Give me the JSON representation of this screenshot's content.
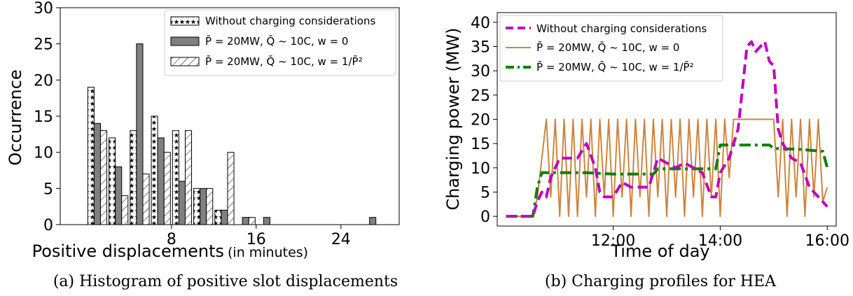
{
  "chart_data": [
    {
      "type": "bar",
      "xlabel": "Positive displacements",
      "xlabel_unit": "(in minutes)",
      "ylabel": "Occurrence",
      "ylim": [
        0,
        30
      ],
      "yticks": [
        0,
        5,
        10,
        15,
        20,
        25,
        30
      ],
      "xticks": [
        8,
        16,
        24
      ],
      "legend_position": "top-right",
      "caption": "(a) Histogram of positive slot displacements",
      "categories": [
        1,
        3,
        5,
        7,
        9,
        11,
        13,
        15,
        17,
        19,
        27
      ],
      "series": [
        {
          "name": "Without charging considerations",
          "pattern": "stars",
          "values": [
            19,
            12,
            13,
            15,
            13,
            5,
            2,
            0,
            0,
            0,
            0
          ]
        },
        {
          "name": "P̄ = 20MW, Q̄ ~ 10C, w = 0",
          "pattern": "gray",
          "values": [
            14,
            8,
            25,
            12,
            6,
            5,
            2,
            1,
            1,
            0,
            1
          ]
        },
        {
          "name": "P̄ = 20MW, Q̄ ~ 10C, w = 1/P̄²",
          "pattern": "hatch",
          "values": [
            13,
            4,
            7,
            10,
            13,
            5,
            10,
            1,
            0,
            0,
            0
          ]
        }
      ]
    },
    {
      "type": "line",
      "xlabel": "Time of day",
      "ylabel": "Charging power (MW)",
      "ylim": [
        0,
        40
      ],
      "yticks": [
        0,
        5,
        10,
        15,
        20,
        25,
        30,
        35,
        40
      ],
      "xlim": [
        "09:50",
        "16:10"
      ],
      "xticks": [
        "12:00",
        "14:00",
        "16:00"
      ],
      "legend_position": "top-left",
      "caption": "(b) Charging profiles for HEA",
      "series": [
        {
          "name": "Without charging considerations",
          "color": "#bf00bf",
          "style": "dashed",
          "points": [
            [
              "10:00",
              0
            ],
            [
              "10:30",
              0
            ],
            [
              "10:35",
              3
            ],
            [
              "10:40",
              5
            ],
            [
              "10:45",
              4
            ],
            [
              "10:50",
              8
            ],
            [
              "10:55",
              10
            ],
            [
              "11:00",
              12
            ],
            [
              "11:10",
              12
            ],
            [
              "11:20",
              12
            ],
            [
              "11:30",
              15
            ],
            [
              "11:40",
              10
            ],
            [
              "11:45",
              5
            ],
            [
              "11:50",
              4
            ],
            [
              "12:00",
              4
            ],
            [
              "12:10",
              7
            ],
            [
              "12:20",
              6
            ],
            [
              "12:40",
              6
            ],
            [
              "12:50",
              12
            ],
            [
              "13:00",
              11
            ],
            [
              "13:10",
              10
            ],
            [
              "13:20",
              11
            ],
            [
              "13:30",
              10
            ],
            [
              "13:40",
              9
            ],
            [
              "13:50",
              4
            ],
            [
              "13:55",
              4
            ],
            [
              "14:00",
              9
            ],
            [
              "14:10",
              12
            ],
            [
              "14:20",
              18
            ],
            [
              "14:30",
              35
            ],
            [
              "14:35",
              36
            ],
            [
              "14:40",
              34
            ],
            [
              "14:45",
              35
            ],
            [
              "14:50",
              36
            ],
            [
              "14:55",
              32
            ],
            [
              "15:00",
              31
            ],
            [
              "15:05",
              18
            ],
            [
              "15:10",
              15
            ],
            [
              "15:20",
              12
            ],
            [
              "15:30",
              11
            ],
            [
              "15:40",
              6
            ],
            [
              "15:50",
              4
            ],
            [
              "16:00",
              2
            ]
          ]
        },
        {
          "name": "P̄ = 20MW, Q̄ ~ 10C, w = 0",
          "color": "#cd853f",
          "style": "solid",
          "points": [
            [
              "10:00",
              0
            ],
            [
              "10:30",
              0
            ],
            [
              "10:35",
              4
            ],
            [
              "10:40",
              12
            ],
            [
              "10:45",
              20
            ],
            [
              "10:50",
              4
            ],
            [
              "10:55",
              20
            ],
            [
              "11:00",
              0
            ],
            [
              "11:05",
              20
            ],
            [
              "11:10",
              0
            ],
            [
              "11:15",
              20
            ],
            [
              "11:20",
              0
            ],
            [
              "11:25",
              20
            ],
            [
              "11:30",
              4
            ],
            [
              "11:35",
              20
            ],
            [
              "11:40",
              0
            ],
            [
              "11:45",
              20
            ],
            [
              "11:50",
              4
            ],
            [
              "11:55",
              20
            ],
            [
              "12:00",
              0
            ],
            [
              "12:05",
              20
            ],
            [
              "12:10",
              4
            ],
            [
              "12:15",
              20
            ],
            [
              "12:20",
              0
            ],
            [
              "12:25",
              20
            ],
            [
              "12:30",
              4
            ],
            [
              "12:35",
              20
            ],
            [
              "12:40",
              0
            ],
            [
              "12:45",
              20
            ],
            [
              "12:50",
              4
            ],
            [
              "12:55",
              20
            ],
            [
              "13:00",
              0
            ],
            [
              "13:05",
              20
            ],
            [
              "13:10",
              4
            ],
            [
              "13:15",
              20
            ],
            [
              "13:20",
              0
            ],
            [
              "13:25",
              20
            ],
            [
              "13:30",
              4
            ],
            [
              "13:35",
              20
            ],
            [
              "13:40",
              0
            ],
            [
              "13:45",
              20
            ],
            [
              "13:50",
              4
            ],
            [
              "13:55",
              20
            ],
            [
              "14:00",
              0
            ],
            [
              "14:05",
              20
            ],
            [
              "14:10",
              8
            ],
            [
              "14:15",
              20
            ],
            [
              "14:30",
              20
            ],
            [
              "15:00",
              20
            ],
            [
              "15:05",
              4
            ],
            [
              "15:10",
              20
            ],
            [
              "15:15",
              0
            ],
            [
              "15:20",
              20
            ],
            [
              "15:25",
              4
            ],
            [
              "15:30",
              20
            ],
            [
              "15:35",
              0
            ],
            [
              "15:40",
              20
            ],
            [
              "15:45",
              4
            ],
            [
              "15:50",
              20
            ],
            [
              "15:55",
              3
            ],
            [
              "16:00",
              6
            ]
          ]
        },
        {
          "name": "P̄ = 20MW, Q̄ ~ 10C, w = 1/P̄²",
          "color": "#008000",
          "style": "dashdot",
          "points": [
            [
              "10:00",
              0
            ],
            [
              "10:30",
              0
            ],
            [
              "10:35",
              6
            ],
            [
              "10:40",
              9
            ],
            [
              "11:00",
              9
            ],
            [
              "11:30",
              9
            ],
            [
              "12:00",
              8.7
            ],
            [
              "12:30",
              8.7
            ],
            [
              "12:45",
              8.7
            ],
            [
              "12:50",
              9.8
            ],
            [
              "13:30",
              9.8
            ],
            [
              "13:55",
              9.8
            ],
            [
              "14:00",
              14.7
            ],
            [
              "14:30",
              14.7
            ],
            [
              "14:55",
              14.7
            ],
            [
              "15:00",
              14
            ],
            [
              "15:30",
              13.8
            ],
            [
              "15:55",
              13.4
            ],
            [
              "16:00",
              10
            ]
          ]
        }
      ]
    }
  ]
}
